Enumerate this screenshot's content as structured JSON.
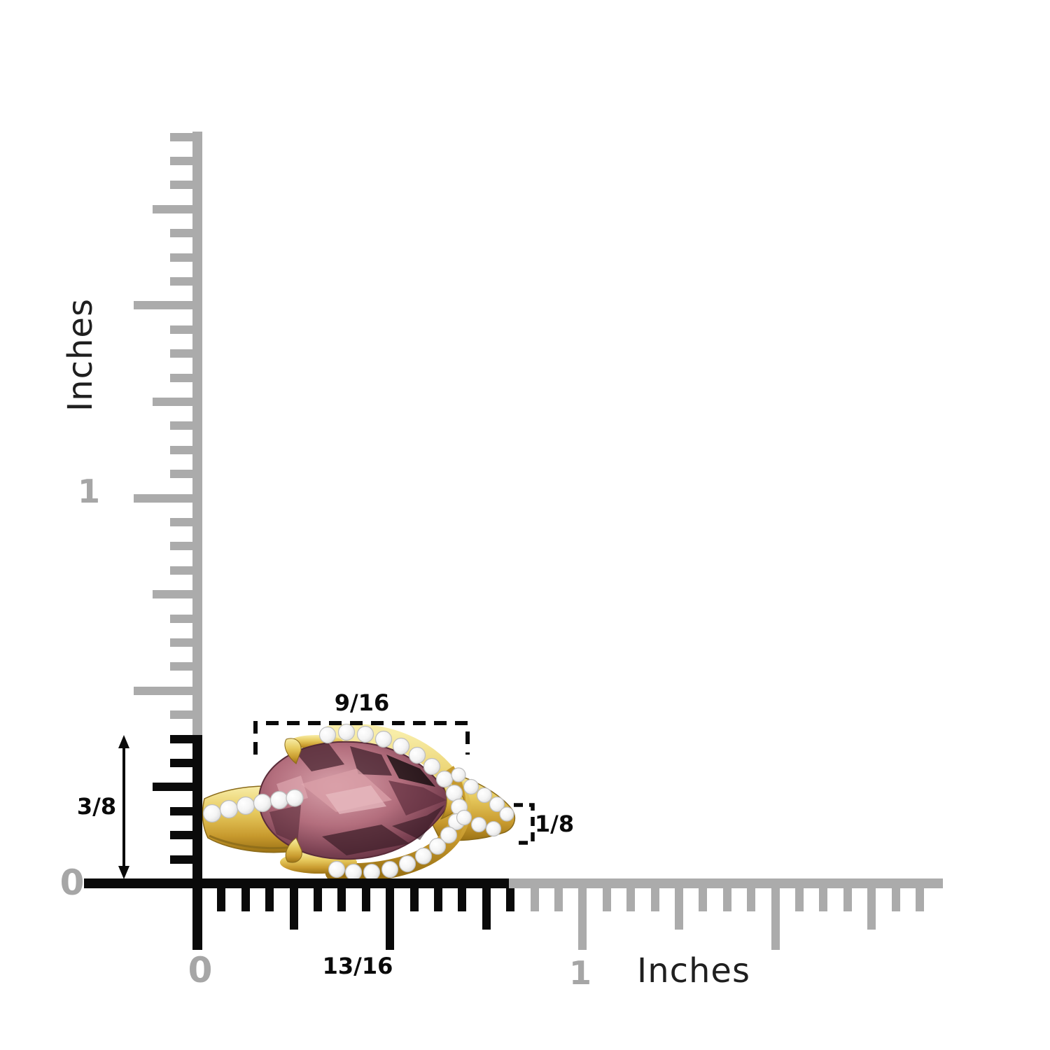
{
  "rulers": {
    "vertical": {
      "unit_label": "Inches",
      "zero": "0",
      "one": "1"
    },
    "horizontal": {
      "unit_label": "Inches",
      "zero": "0",
      "one": "1"
    }
  },
  "dimensions": {
    "top_width": "9/16",
    "left_height": "3/8",
    "band_thickness": "1/8",
    "bottom_width": "13/16"
  },
  "object": {
    "icon": "gemstone-ring-image"
  },
  "colors": {
    "ruler_gray": "#ababab",
    "ruler_black": "#0a0a0a",
    "label_gray": "#a6a6a6",
    "text_dark": "#1f1f1f",
    "annotation": "#0a0a0a",
    "gold": "#e2c353",
    "gold_dark": "#a87f1c",
    "diamond": "#ffffff",
    "stone_light": "#d9a3ac",
    "stone_mid": "#b36e7d",
    "stone_dark": "#4f2735"
  }
}
